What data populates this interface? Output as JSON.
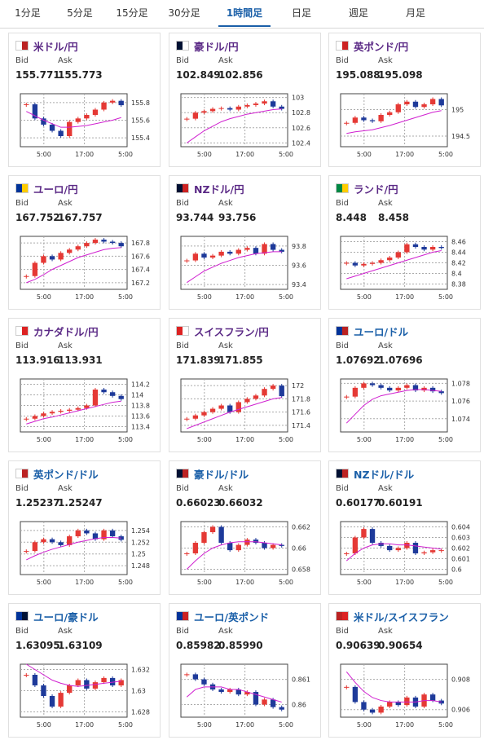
{
  "tabs": [
    "1分足",
    "5分足",
    "15分足",
    "30分足",
    "1時間足",
    "日足",
    "週足",
    "月足"
  ],
  "active": 4,
  "bid_label": "Bid",
  "ask_label": "Ask",
  "x_labels": [
    "5:00",
    "17:00",
    "5:00"
  ],
  "pairs": [
    {
      "name": "米ドル/円",
      "color": "#5b2a86",
      "bid": "155.771",
      "ask": "155.773",
      "chart": {
        "type": "candlestick",
        "ylim": [
          155.3,
          155.9
        ],
        "yticks": [
          155.4,
          155.6,
          155.8
        ],
        "values": [
          155.78,
          155.62,
          155.55,
          155.48,
          155.42,
          155.58,
          155.62,
          155.66,
          155.72,
          155.8,
          155.82,
          155.77
        ],
        "ma": [
          155.7,
          155.65,
          155.6,
          155.56,
          155.52,
          155.52,
          155.53,
          155.54,
          155.56,
          155.58,
          155.6,
          155.63
        ]
      }
    },
    {
      "name": "豪ドル/円",
      "color": "#5b2a86",
      "bid": "102.849",
      "ask": "102.856",
      "chart": {
        "type": "candlestick",
        "ylim": [
          102.35,
          103.05
        ],
        "yticks": [
          102.4,
          102.6,
          102.8,
          103
        ],
        "values": [
          102.72,
          102.8,
          102.82,
          102.85,
          102.86,
          102.84,
          102.88,
          102.9,
          102.92,
          102.95,
          102.88,
          102.85
        ],
        "ma": [
          102.4,
          102.48,
          102.56,
          102.62,
          102.68,
          102.72,
          102.75,
          102.78,
          102.8,
          102.82,
          102.84,
          102.85
        ]
      }
    },
    {
      "name": "英ポンド/円",
      "color": "#5b2a86",
      "bid": "195.088",
      "ask": "195.098",
      "chart": {
        "type": "candlestick",
        "ylim": [
          194.3,
          195.3
        ],
        "yticks": [
          194.5,
          195
        ],
        "values": [
          194.75,
          194.85,
          194.8,
          194.78,
          194.9,
          194.95,
          195.1,
          195.15,
          195.05,
          195.1,
          195.2,
          195.08
        ],
        "ma": [
          194.55,
          194.58,
          194.6,
          194.62,
          194.66,
          194.7,
          194.75,
          194.8,
          194.85,
          194.9,
          194.95,
          194.98
        ]
      }
    },
    {
      "name": "ユーロ/円",
      "color": "#5b2a86",
      "bid": "167.752",
      "ask": "167.757",
      "chart": {
        "type": "candlestick",
        "ylim": [
          167.1,
          167.9
        ],
        "yticks": [
          167.2,
          167.4,
          167.6,
          167.8
        ],
        "values": [
          167.3,
          167.5,
          167.6,
          167.55,
          167.65,
          167.7,
          167.75,
          167.8,
          167.85,
          167.82,
          167.8,
          167.75
        ],
        "ma": [
          167.2,
          167.25,
          167.32,
          167.4,
          167.46,
          167.52,
          167.58,
          167.62,
          167.66,
          167.7,
          167.72,
          167.73
        ]
      }
    },
    {
      "name": "NZドル/円",
      "color": "#5b2a86",
      "bid": "93.744",
      "ask": "93.756",
      "chart": {
        "type": "candlestick",
        "ylim": [
          93.35,
          93.9
        ],
        "yticks": [
          93.4,
          93.6,
          93.8
        ],
        "values": [
          93.65,
          93.72,
          93.68,
          93.7,
          93.74,
          93.72,
          93.76,
          93.78,
          93.72,
          93.82,
          93.76,
          93.74
        ],
        "ma": [
          93.42,
          93.48,
          93.54,
          93.58,
          93.62,
          93.65,
          93.68,
          93.7,
          93.72,
          93.73,
          93.74,
          93.74
        ]
      }
    },
    {
      "name": "ランド/円",
      "color": "#5b2a86",
      "bid": "8.448",
      "ask": "8.458",
      "chart": {
        "type": "candlestick",
        "ylim": [
          8.37,
          8.47
        ],
        "yticks": [
          8.38,
          8.4,
          8.42,
          8.44,
          8.46
        ],
        "values": [
          8.42,
          8.415,
          8.418,
          8.42,
          8.425,
          8.43,
          8.44,
          8.455,
          8.45,
          8.445,
          8.45,
          8.448
        ],
        "ma": [
          8.39,
          8.395,
          8.4,
          8.405,
          8.41,
          8.415,
          8.42,
          8.425,
          8.43,
          8.435,
          8.44,
          8.443
        ]
      }
    },
    {
      "name": "カナダドル/円",
      "color": "#5b2a86",
      "bid": "113.916",
      "ask": "113.931",
      "chart": {
        "type": "candlestick",
        "ylim": [
          113.3,
          114.3
        ],
        "yticks": [
          113.4,
          113.6,
          113.8,
          114,
          114.2
        ],
        "values": [
          113.55,
          113.6,
          113.65,
          113.68,
          113.7,
          113.72,
          113.75,
          113.8,
          114.1,
          114.05,
          113.98,
          113.92
        ],
        "ma": [
          113.45,
          113.5,
          113.55,
          113.58,
          113.62,
          113.66,
          113.7,
          113.74,
          113.78,
          113.82,
          113.86,
          113.88
        ]
      }
    },
    {
      "name": "スイスフラン/円",
      "color": "#5b2a86",
      "bid": "171.839",
      "ask": "171.855",
      "chart": {
        "type": "candlestick",
        "ylim": [
          171.3,
          172.1
        ],
        "yticks": [
          171.4,
          171.6,
          171.8,
          172
        ],
        "values": [
          171.5,
          171.55,
          171.6,
          171.65,
          171.7,
          171.6,
          171.75,
          171.8,
          171.85,
          171.95,
          172,
          171.84
        ],
        "ma": [
          171.35,
          171.4,
          171.45,
          171.5,
          171.55,
          171.6,
          171.64,
          171.68,
          171.72,
          171.76,
          171.8,
          171.82
        ]
      }
    },
    {
      "name": "ユーロ/ドル",
      "color": "#1a5fa8",
      "bid": "1.07692",
      "ask": "1.07696",
      "chart": {
        "type": "candlestick",
        "ylim": [
          1.0725,
          1.0785
        ],
        "yticks": [
          1.074,
          1.076,
          1.078
        ],
        "values": [
          1.0765,
          1.0775,
          1.078,
          1.0778,
          1.0775,
          1.0772,
          1.0775,
          1.0778,
          1.0772,
          1.0775,
          1.0771,
          1.0769
        ],
        "ma": [
          1.0735,
          1.0745,
          1.0755,
          1.0762,
          1.0766,
          1.0768,
          1.077,
          1.0772,
          1.0773,
          1.0773,
          1.0772,
          1.0771
        ]
      }
    },
    {
      "name": "英ポンド/ドル",
      "color": "#1a5fa8",
      "bid": "1.25237",
      "ask": "1.25247",
      "chart": {
        "type": "candlestick",
        "ylim": [
          1.2465,
          1.2555
        ],
        "yticks": [
          1.248,
          1.25,
          1.252,
          1.254
        ],
        "values": [
          1.2505,
          1.252,
          1.2525,
          1.252,
          1.2515,
          1.253,
          1.254,
          1.2535,
          1.2525,
          1.254,
          1.253,
          1.2524
        ],
        "ma": [
          1.249,
          1.2497,
          1.2503,
          1.2508,
          1.2512,
          1.2516,
          1.252,
          1.2523,
          1.2526,
          1.2528,
          1.2528,
          1.2527
        ]
      }
    },
    {
      "name": "豪ドル/ドル",
      "color": "#1a5fa8",
      "bid": "0.66023",
      "ask": "0.66032",
      "chart": {
        "type": "candlestick",
        "ylim": [
          0.6575,
          0.6625
        ],
        "yticks": [
          0.658,
          0.66,
          0.662
        ],
        "values": [
          0.6595,
          0.6605,
          0.6615,
          0.662,
          0.6605,
          0.6598,
          0.6603,
          0.6608,
          0.6605,
          0.66,
          0.6603,
          0.6602
        ],
        "ma": [
          0.658,
          0.6588,
          0.6595,
          0.66,
          0.6603,
          0.6605,
          0.6606,
          0.6606,
          0.6606,
          0.6605,
          0.6604,
          0.6603
        ]
      }
    },
    {
      "name": "NZドル/ドル",
      "color": "#1a5fa8",
      "bid": "0.60177",
      "ask": "0.60191",
      "chart": {
        "type": "candlestick",
        "ylim": [
          0.5995,
          0.6045
        ],
        "yticks": [
          0.6,
          0.601,
          0.602,
          0.603,
          0.604
        ],
        "values": [
          0.6015,
          0.603,
          0.6038,
          0.6025,
          0.6022,
          0.6018,
          0.602,
          0.6025,
          0.6015,
          0.6016,
          0.6018,
          0.6018
        ],
        "ma": [
          0.6008,
          0.6015,
          0.602,
          0.6023,
          0.6024,
          0.6024,
          0.6023,
          0.6023,
          0.6022,
          0.6021,
          0.602,
          0.6019
        ]
      }
    },
    {
      "name": "ユーロ/豪ドル",
      "color": "#1a5fa8",
      "bid": "1.63095",
      "ask": "1.63109",
      "chart": {
        "type": "candlestick",
        "ylim": [
          1.6275,
          1.6325
        ],
        "yticks": [
          1.628,
          1.63,
          1.632
        ],
        "values": [
          1.6315,
          1.6305,
          1.6295,
          1.6285,
          1.6298,
          1.6305,
          1.631,
          1.6302,
          1.6308,
          1.6312,
          1.6305,
          1.631
        ],
        "ma": [
          1.6325,
          1.632,
          1.6315,
          1.631,
          1.6307,
          1.6305,
          1.6304,
          1.6305,
          1.6306,
          1.6307,
          1.6308,
          1.6309
        ]
      }
    },
    {
      "name": "ユーロ/英ポンド",
      "color": "#1a5fa8",
      "bid": "0.85982",
      "ask": "0.85990",
      "chart": {
        "type": "candlestick",
        "ylim": [
          0.8595,
          0.8616
        ],
        "yticks": [
          0.86,
          0.861
        ],
        "values": [
          0.8612,
          0.861,
          0.8608,
          0.8606,
          0.8605,
          0.8606,
          0.8604,
          0.8605,
          0.86,
          0.8602,
          0.8599,
          0.8598
        ],
        "ma": [
          0.8603,
          0.8606,
          0.8607,
          0.8607,
          0.8607,
          0.8606,
          0.8606,
          0.8605,
          0.8604,
          0.8603,
          0.8602,
          0.8601
        ]
      }
    },
    {
      "name": "米ドル/スイスフラン",
      "color": "#1a5fa8",
      "bid": "0.90639",
      "ask": "0.90654",
      "chart": {
        "type": "candlestick",
        "ylim": [
          0.9055,
          0.909
        ],
        "yticks": [
          0.906,
          0.908
        ],
        "values": [
          0.9075,
          0.9065,
          0.906,
          0.9058,
          0.9062,
          0.9065,
          0.9063,
          0.9068,
          0.9062,
          0.907,
          0.9066,
          0.9064
        ],
        "ma": [
          0.9085,
          0.9078,
          0.9072,
          0.9068,
          0.9066,
          0.9065,
          0.9065,
          0.9065,
          0.9065,
          0.9066,
          0.9066,
          0.9065
        ]
      }
    }
  ]
}
